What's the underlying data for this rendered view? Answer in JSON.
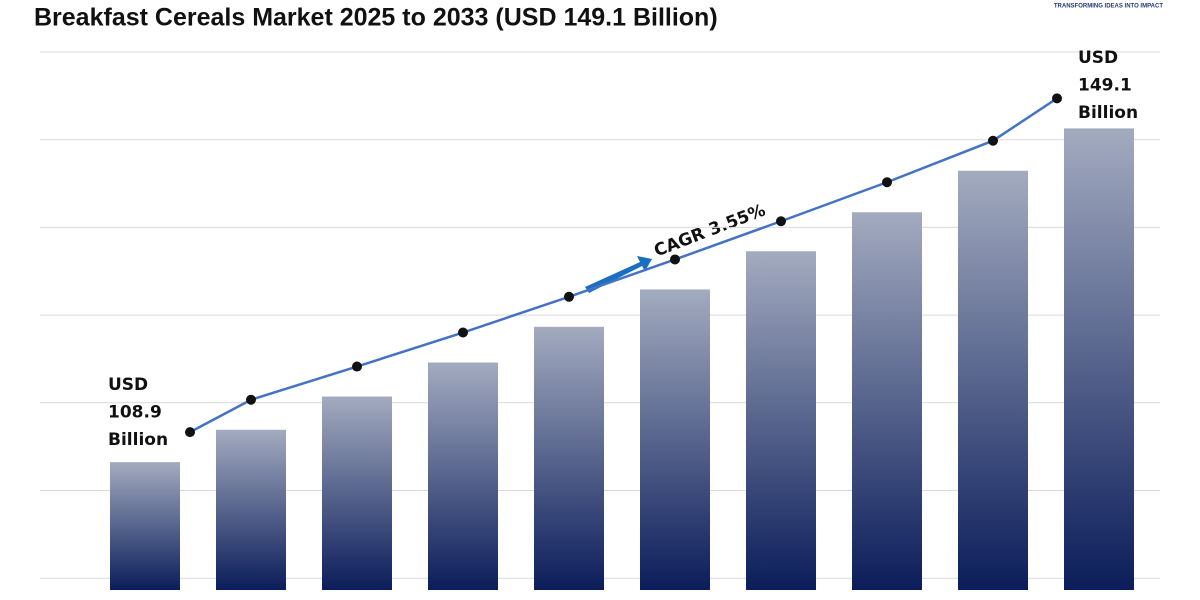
{
  "chart_data": {
    "type": "bar",
    "title": "Breakfast Cereals Market 2025 to 2033 (USD 149.1 Billion)",
    "logo_tagline": "TRANSFORMING IDEAS INTO IMPACT",
    "categories": [
      null,
      null,
      null,
      null,
      null,
      null,
      null,
      null,
      null,
      null
    ],
    "values": [
      108.9,
      112.8,
      116.8,
      120.9,
      125.2,
      129.7,
      134.3,
      139.0,
      144.0,
      149.1
    ],
    "ylim": [
      93.5,
      158.3
    ],
    "grid": true,
    "trend_line": true,
    "colors": {
      "bar_top": "#a3abbf",
      "bar_bottom": "#0b1d5a",
      "line": "#4472c4",
      "marker": "#111111"
    },
    "annotations": {
      "start": [
        "USD",
        "108.9",
        "Billion"
      ],
      "end": [
        "USD",
        "149.1",
        "Billion"
      ],
      "cagr": "CAGR 3.55%"
    }
  }
}
